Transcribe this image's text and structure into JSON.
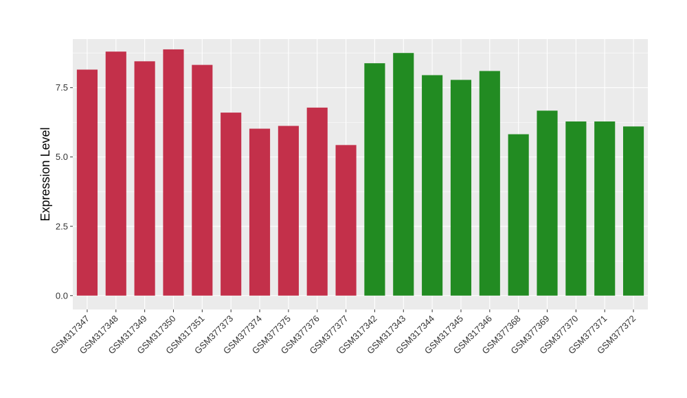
{
  "chart_data": {
    "type": "bar",
    "title": "",
    "xlabel": "",
    "ylabel": "Expression Level",
    "ylim": [
      -0.5,
      9.25
    ],
    "y_ticks": [
      0.0,
      2.5,
      5.0,
      7.5
    ],
    "y_tick_labels": [
      "0.0",
      "2.5",
      "5.0",
      "7.5"
    ],
    "grid": true,
    "legend": "none",
    "categories": [
      "GSM317347",
      "GSM317348",
      "GSM317349",
      "GSM317350",
      "GSM317351",
      "GSM377373",
      "GSM377374",
      "GSM377375",
      "GSM377376",
      "GSM377377",
      "GSM317342",
      "GSM317343",
      "GSM317344",
      "GSM317345",
      "GSM317346",
      "GSM377368",
      "GSM377369",
      "GSM377370",
      "GSM377371",
      "GSM377372"
    ],
    "values": [
      8.15,
      8.8,
      8.45,
      8.88,
      8.32,
      6.6,
      6.02,
      6.12,
      6.78,
      5.43,
      8.38,
      8.75,
      7.95,
      7.78,
      8.1,
      5.82,
      6.67,
      6.28,
      6.28,
      6.1
    ],
    "bar_colors": [
      "#C3304A",
      "#C3304A",
      "#C3304A",
      "#C3304A",
      "#C3304A",
      "#C3304A",
      "#C3304A",
      "#C3304A",
      "#C3304A",
      "#C3304A",
      "#228B22",
      "#228B22",
      "#228B22",
      "#228B22",
      "#228B22",
      "#228B22",
      "#228B22",
      "#228B22",
      "#228B22",
      "#228B22"
    ],
    "panel_background": "#EBEBEB",
    "grid_color": "#FFFFFF"
  }
}
